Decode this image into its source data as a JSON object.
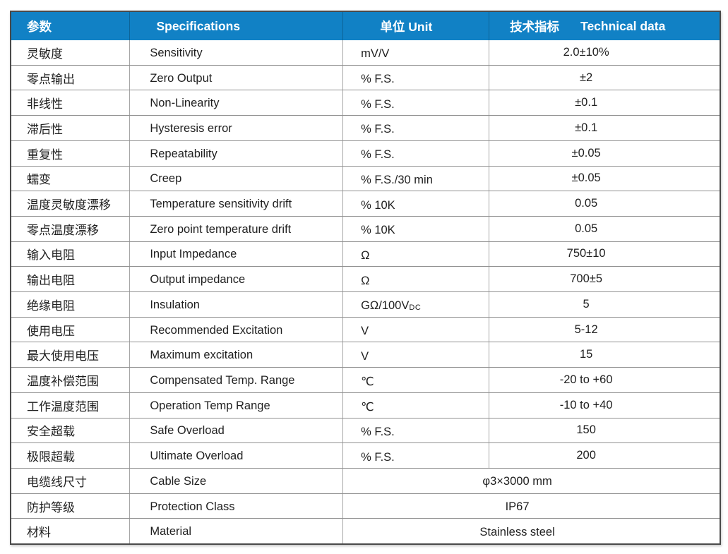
{
  "table": {
    "headers": {
      "param": "参数",
      "spec": "Specifications",
      "unit": "单位 Unit",
      "tech_cn": "技术指标",
      "tech_en": "Technical data"
    },
    "rows": [
      {
        "param": "灵敏度",
        "spec": "Sensitivity",
        "unit": "mV/V",
        "value": "2.0±10%"
      },
      {
        "param": "零点输出",
        "spec": "Zero Output",
        "unit": "% F.S.",
        "value": "±2"
      },
      {
        "param": "非线性",
        "spec": "Non-Linearity",
        "unit": "% F.S.",
        "value": "±0.1"
      },
      {
        "param": "滞后性",
        "spec": "Hysteresis error",
        "unit": "% F.S.",
        "value": "±0.1"
      },
      {
        "param": "重复性",
        "spec": "Repeatability",
        "unit": "% F.S.",
        "value": "±0.05"
      },
      {
        "param": "蠕变",
        "spec": "Creep",
        "unit": "% F.S./30 min",
        "value": "±0.05"
      },
      {
        "param": "温度灵敏度漂移",
        "spec": "Temperature sensitivity drift",
        "unit": "% 10K",
        "value": "0.05"
      },
      {
        "param": "零点温度漂移",
        "spec": "Zero point temperature drift",
        "unit": "% 10K",
        "value": "0.05"
      },
      {
        "param": "输入电阻",
        "spec": "Input Impedance",
        "unit": "Ω",
        "value": "750±10"
      },
      {
        "param": "输出电阻",
        "spec": "Output impedance",
        "unit": "Ω",
        "value": "700±5"
      },
      {
        "param": "绝缘电阻",
        "spec": "Insulation",
        "unit": "GΩ/100V",
        "unit_sub": "DC",
        "value": "5"
      },
      {
        "param": "使用电压",
        "spec": "Recommended Excitation",
        "unit": "V",
        "value": "5-12"
      },
      {
        "param": "最大使用电压",
        "spec": "Maximum excitation",
        "unit": "V",
        "value": "15"
      },
      {
        "param": "温度补偿范围",
        "spec": "Compensated Temp. Range",
        "unit": "℃",
        "value": "-20 to +60"
      },
      {
        "param": "工作温度范围",
        "spec": "Operation Temp Range",
        "unit": "℃",
        "value": "-10 to +40"
      },
      {
        "param": "安全超载",
        "spec": "Safe Overload",
        "unit": "% F.S.",
        "value": "150"
      },
      {
        "param": "极限超载",
        "spec": "Ultimate Overload",
        "unit": "% F.S.",
        "value": "200"
      },
      {
        "param": "电缆线尺寸",
        "spec": "Cable Size",
        "merged": true,
        "value": "φ3×3000 mm"
      },
      {
        "param": "防护等级",
        "spec": "Protection Class",
        "merged": true,
        "value": "IP67"
      },
      {
        "param": "材料",
        "spec": "Material",
        "merged": true,
        "value": "Stainless steel"
      }
    ],
    "colors": {
      "header_bg": "#1181c5",
      "header_text": "#ffffff",
      "body_text": "#1f1f1f",
      "grid_horizontal": "#909090",
      "grid_vertical": "#a6a6a6",
      "outer_border": "#4a4a4a"
    }
  }
}
